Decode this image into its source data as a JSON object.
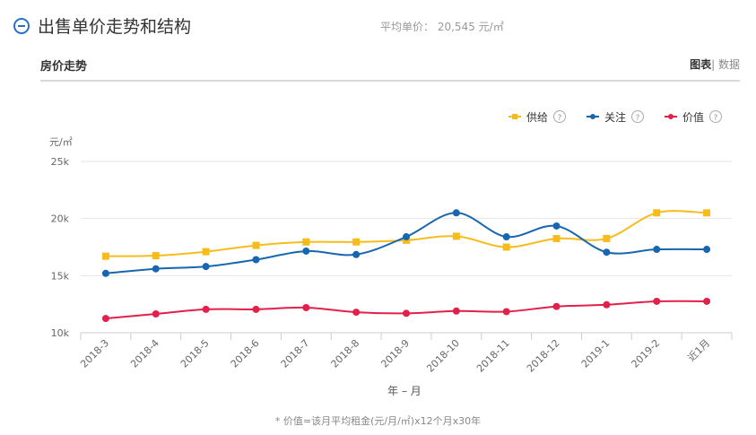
{
  "header": {
    "title": "出售单价走势和结构",
    "avg_label": "平均单价：",
    "avg_value": "20,545 元/㎡"
  },
  "panel": {
    "title": "房价走势",
    "toggle_chart": "图表",
    "toggle_sep": "|",
    "toggle_data": "数据"
  },
  "footnote": "* 价值=该月平均租金(元/月/㎡)x12个月x30年",
  "chart_data": {
    "type": "line",
    "ylabel": "元/㎡",
    "xlabel": "年 – 月",
    "ylim": [
      10000,
      25000
    ],
    "yticks": [
      {
        "v": 10000,
        "label": "10k"
      },
      {
        "v": 15000,
        "label": "15k"
      },
      {
        "v": 20000,
        "label": "20k"
      },
      {
        "v": 25000,
        "label": "25k"
      }
    ],
    "grid": true,
    "legend": "top-right",
    "categories": [
      "2018-3",
      "2018-4",
      "2018-5",
      "2018-6",
      "2018-7",
      "2018-8",
      "2018-9",
      "2018-10",
      "2018-11",
      "2018-12",
      "2019-1",
      "2019-2",
      "近1月"
    ],
    "series": [
      {
        "name": "供给",
        "color": "#f7bc1c",
        "marker": "square",
        "values": [
          16700,
          16750,
          17100,
          17650,
          17950,
          17950,
          18100,
          18450,
          17500,
          18250,
          18250,
          20500,
          20500
        ]
      },
      {
        "name": "关注",
        "color": "#1766b0",
        "marker": "circle",
        "values": [
          15200,
          15600,
          15800,
          16400,
          17150,
          16850,
          18400,
          20500,
          18400,
          19350,
          17050,
          17300,
          17300
        ]
      },
      {
        "name": "价值",
        "color": "#e3204a",
        "marker": "circle",
        "values": [
          11250,
          11650,
          12050,
          12050,
          12200,
          11800,
          11700,
          11900,
          11850,
          12300,
          12450,
          12750,
          12750
        ]
      }
    ]
  }
}
